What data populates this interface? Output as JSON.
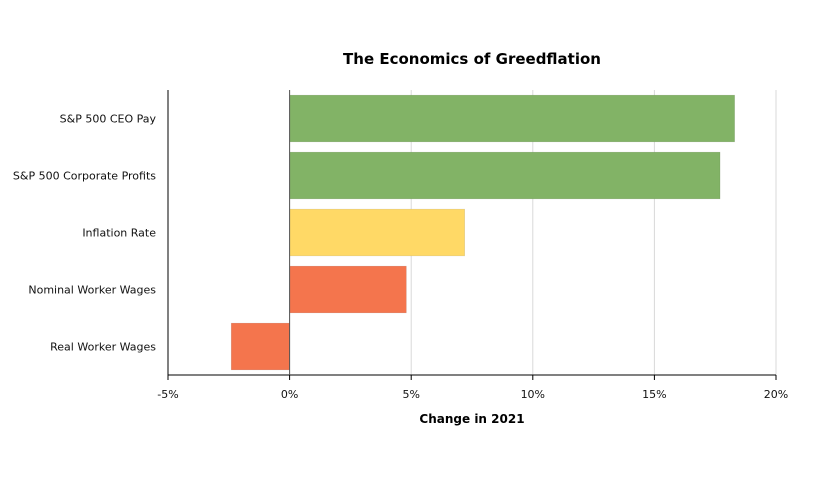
{
  "chart_data": {
    "type": "bar",
    "orientation": "horizontal",
    "title": "The Economics of Greedflation",
    "xlabel": "Change in 2021",
    "ylabel": "",
    "categories": [
      "S&P 500 CEO Pay",
      "S&P 500 Corporate Profits",
      "Inflation Rate",
      "Nominal Worker Wages",
      "Real Worker Wages"
    ],
    "values": [
      18.3,
      17.7,
      7.2,
      4.8,
      -2.4
    ],
    "bar_colors": [
      "#82b366",
      "#82b366",
      "#ffd966",
      "#f4754d",
      "#f4754d"
    ],
    "xlim": [
      -5,
      20
    ],
    "xticks": [
      -5,
      0,
      5,
      10,
      15,
      20
    ],
    "xtick_labels": [
      "-5%",
      "0%",
      "5%",
      "10%",
      "15%",
      "20%"
    ],
    "grid": true,
    "legend": "none"
  }
}
